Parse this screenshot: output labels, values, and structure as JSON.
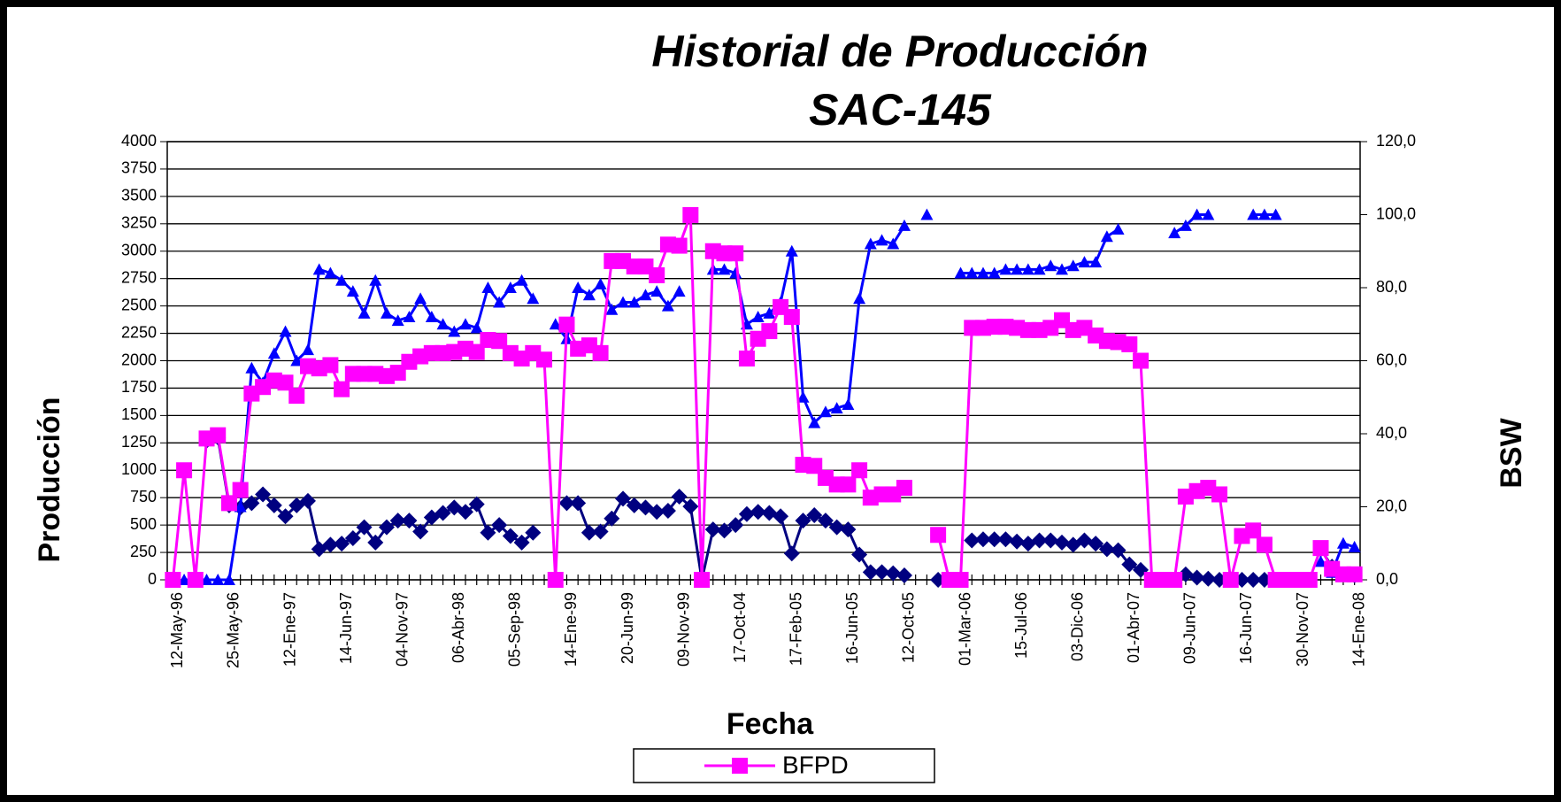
{
  "chart_data": {
    "type": "line",
    "title": "Historial de Producción",
    "subtitle": "SAC-145",
    "x_label": "Fecha",
    "y_label": "Producción",
    "y2_label": "BSW",
    "categories": [
      "12-May-96",
      null,
      null,
      null,
      null,
      "25-May-96",
      null,
      null,
      null,
      null,
      "12-Ene-97",
      null,
      null,
      null,
      null,
      "14-Jun-97",
      null,
      null,
      null,
      null,
      "04-Nov-97",
      null,
      null,
      null,
      null,
      "06-Abr-98",
      null,
      null,
      null,
      null,
      "05-Sep-98",
      null,
      null,
      null,
      null,
      "14-Ene-99",
      null,
      null,
      null,
      null,
      "20-Jun-99",
      null,
      null,
      null,
      null,
      "09-Nov-99",
      null,
      null,
      null,
      null,
      "17-Oct-04",
      null,
      null,
      null,
      null,
      "17-Feb-05",
      null,
      null,
      null,
      null,
      "16-Jun-05",
      null,
      null,
      null,
      null,
      "12-Oct-05",
      null,
      null,
      null,
      null,
      "01-Mar-06",
      null,
      null,
      null,
      null,
      "15-Jul-06",
      null,
      null,
      null,
      null,
      "03-Dic-06",
      null,
      null,
      null,
      null,
      "01-Abr-07",
      null,
      null,
      null,
      null,
      "09-Jun-07",
      null,
      null,
      null,
      null,
      "16-Jun-07",
      null,
      null,
      null,
      null,
      "30-Nov-07",
      null,
      null,
      null,
      null,
      "14-Ene-08"
    ],
    "series": [
      {
        "name": "BFPD",
        "color": "#ff00ff",
        "marker": "square",
        "values": [
          0,
          1000,
          0,
          1290,
          1320,
          700,
          820,
          1700,
          1760,
          1820,
          1800,
          1680,
          1950,
          1930,
          1960,
          1740,
          1880,
          1880,
          1880,
          1860,
          1890,
          1990,
          2040,
          2070,
          2070,
          2080,
          2110,
          2080,
          2190,
          2180,
          2070,
          2020,
          2070,
          2010,
          0,
          2330,
          2110,
          2140,
          2070,
          2910,
          2910,
          2860,
          2860,
          2780,
          3060,
          3050,
          3330,
          0,
          3000,
          2980,
          2980,
          2020,
          2200,
          2270,
          2490,
          2400,
          1050,
          1040,
          930,
          870,
          870,
          1000,
          750,
          780,
          780,
          840,
          null,
          null,
          410,
          0,
          0,
          2300,
          2300,
          2310,
          2310,
          2300,
          2280,
          2280,
          2300,
          2370,
          2280,
          2300,
          2230,
          2180,
          2170,
          2150,
          2000,
          0,
          0,
          0,
          760,
          810,
          840,
          780,
          0,
          400,
          450,
          320,
          0,
          0,
          0,
          0,
          290,
          100,
          50,
          50
        ]
      },
      {
        "color": "#000080",
        "marker": "diamond",
        "values": [
          null,
          980,
          null,
          1270,
          1300,
          680,
          660,
          700,
          780,
          680,
          580,
          680,
          720,
          280,
          320,
          330,
          380,
          480,
          340,
          480,
          540,
          540,
          440,
          570,
          610,
          660,
          620,
          690,
          430,
          500,
          400,
          340,
          430,
          null,
          null,
          700,
          700,
          430,
          440,
          560,
          740,
          680,
          660,
          620,
          630,
          760,
          670,
          0,
          460,
          450,
          500,
          600,
          620,
          610,
          580,
          240,
          540,
          590,
          540,
          480,
          460,
          230,
          70,
          70,
          60,
          40,
          null,
          null,
          0,
          null,
          null,
          360,
          370,
          370,
          370,
          350,
          330,
          360,
          360,
          340,
          320,
          360,
          330,
          280,
          270,
          140,
          90,
          null,
          null,
          null,
          50,
          20,
          10,
          0,
          null,
          0,
          0,
          0,
          null,
          null,
          null,
          null,
          280,
          120,
          50,
          40
        ]
      },
      {
        "color": "#0000ff",
        "marker": "triangle",
        "axis": "y2",
        "values": [
          null,
          0,
          0,
          0,
          0,
          0,
          20,
          58,
          54,
          62,
          68,
          60,
          63,
          85,
          84,
          82,
          79,
          73,
          82,
          73,
          71,
          72,
          77,
          72,
          70,
          68,
          70,
          69,
          80,
          76,
          80,
          82,
          77,
          null,
          70,
          66,
          80,
          78,
          81,
          74,
          76,
          76,
          78,
          79,
          75,
          79,
          null,
          null,
          85,
          85,
          84,
          70,
          72,
          73,
          76,
          90,
          50,
          43,
          46,
          47,
          48,
          77,
          92,
          93,
          92,
          97,
          null,
          100,
          null,
          null,
          84,
          84,
          84,
          84,
          85,
          85,
          85,
          85,
          86,
          85,
          86,
          87,
          87,
          94,
          96,
          null,
          null,
          null,
          null,
          95,
          97,
          100,
          100,
          null,
          null,
          null,
          100,
          100,
          100,
          null,
          null,
          null,
          5,
          2,
          10,
          9
        ]
      }
    ],
    "ylim": [
      0,
      4000
    ],
    "yticks": [
      0,
      250,
      500,
      750,
      1000,
      1250,
      1500,
      1750,
      2000,
      2250,
      2500,
      2750,
      3000,
      3250,
      3500,
      3750,
      4000
    ],
    "y2lim": [
      0,
      120
    ],
    "y2ticks": [
      {
        "value": 0,
        "label": "0,0"
      },
      {
        "value": 20,
        "label": "20,0"
      },
      {
        "value": 40,
        "label": "40,0"
      },
      {
        "value": 60,
        "label": "60,0"
      },
      {
        "value": 80,
        "label": "80,0"
      },
      {
        "value": 100,
        "label": "100,0"
      },
      {
        "value": 120,
        "label": "120,0"
      }
    ],
    "grid": true
  }
}
